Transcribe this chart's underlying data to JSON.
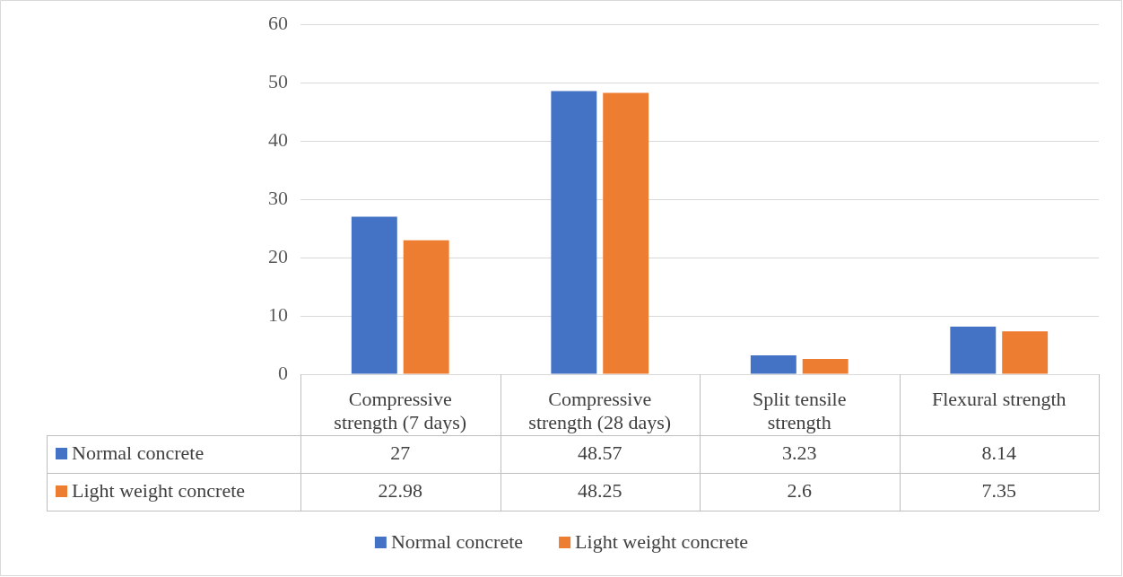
{
  "chart_data": {
    "type": "bar",
    "categories": [
      "Compressive strength (7 days)",
      "Compressive strength (28 days)",
      "Split tensile strength",
      "Flexural strength"
    ],
    "series": [
      {
        "name": "Normal concrete",
        "color": "#4472c4",
        "values": [
          27,
          48.57,
          3.23,
          8.14
        ]
      },
      {
        "name": "Light weight concrete",
        "color": "#ed7d31",
        "values": [
          22.98,
          48.25,
          2.6,
          7.35
        ]
      }
    ],
    "ylim": [
      0,
      60
    ],
    "yticks": [
      0,
      10,
      20,
      30,
      40,
      50,
      60
    ],
    "grid": "y",
    "legend": "bottom",
    "data_labels": true
  }
}
